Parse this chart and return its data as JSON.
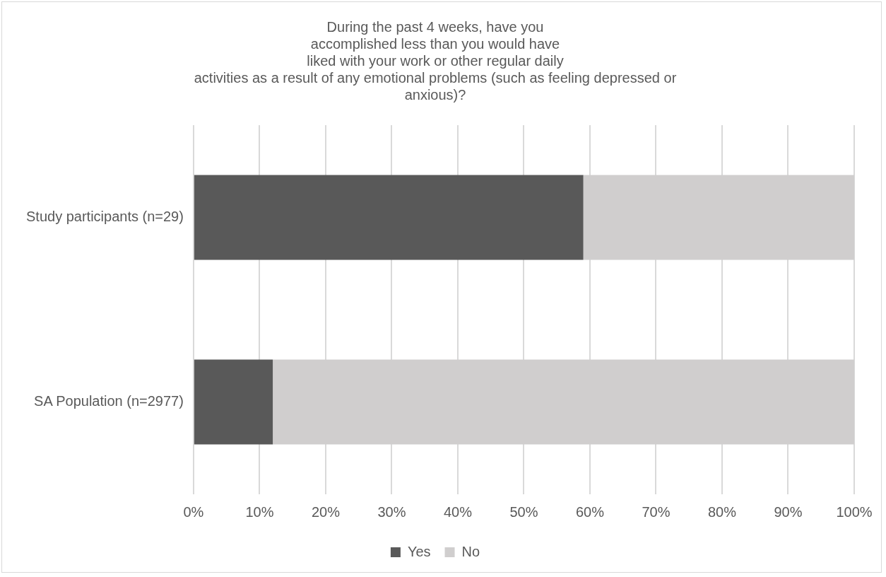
{
  "chart_data": {
    "type": "bar",
    "orientation": "horizontal",
    "stacked": true,
    "title": "During the past 4 weeks, have you\naccomplished less than you would have\nliked with your work or other regular daily\nactivities as a result of any emotional problems (such as feeling depressed or\nanxious)?",
    "categories": [
      "Study participants (n=29)",
      "SA Population (n=2977)"
    ],
    "series": [
      {
        "name": "Yes",
        "color": "#595959",
        "values": [
          59,
          12
        ]
      },
      {
        "name": "No",
        "color": "#d0cece",
        "values": [
          41,
          88
        ]
      }
    ],
    "xlim": [
      0,
      100
    ],
    "xticks": [
      {
        "value": 0,
        "label": "0%"
      },
      {
        "value": 10,
        "label": "10%"
      },
      {
        "value": 20,
        "label": "20%"
      },
      {
        "value": 30,
        "label": "30%"
      },
      {
        "value": 40,
        "label": "40%"
      },
      {
        "value": 50,
        "label": "50%"
      },
      {
        "value": 60,
        "label": "60%"
      },
      {
        "value": 70,
        "label": "70%"
      },
      {
        "value": 80,
        "label": "80%"
      },
      {
        "value": 90,
        "label": "90%"
      },
      {
        "value": 100,
        "label": "100%"
      }
    ],
    "grid": "x",
    "legend": "bottom"
  }
}
